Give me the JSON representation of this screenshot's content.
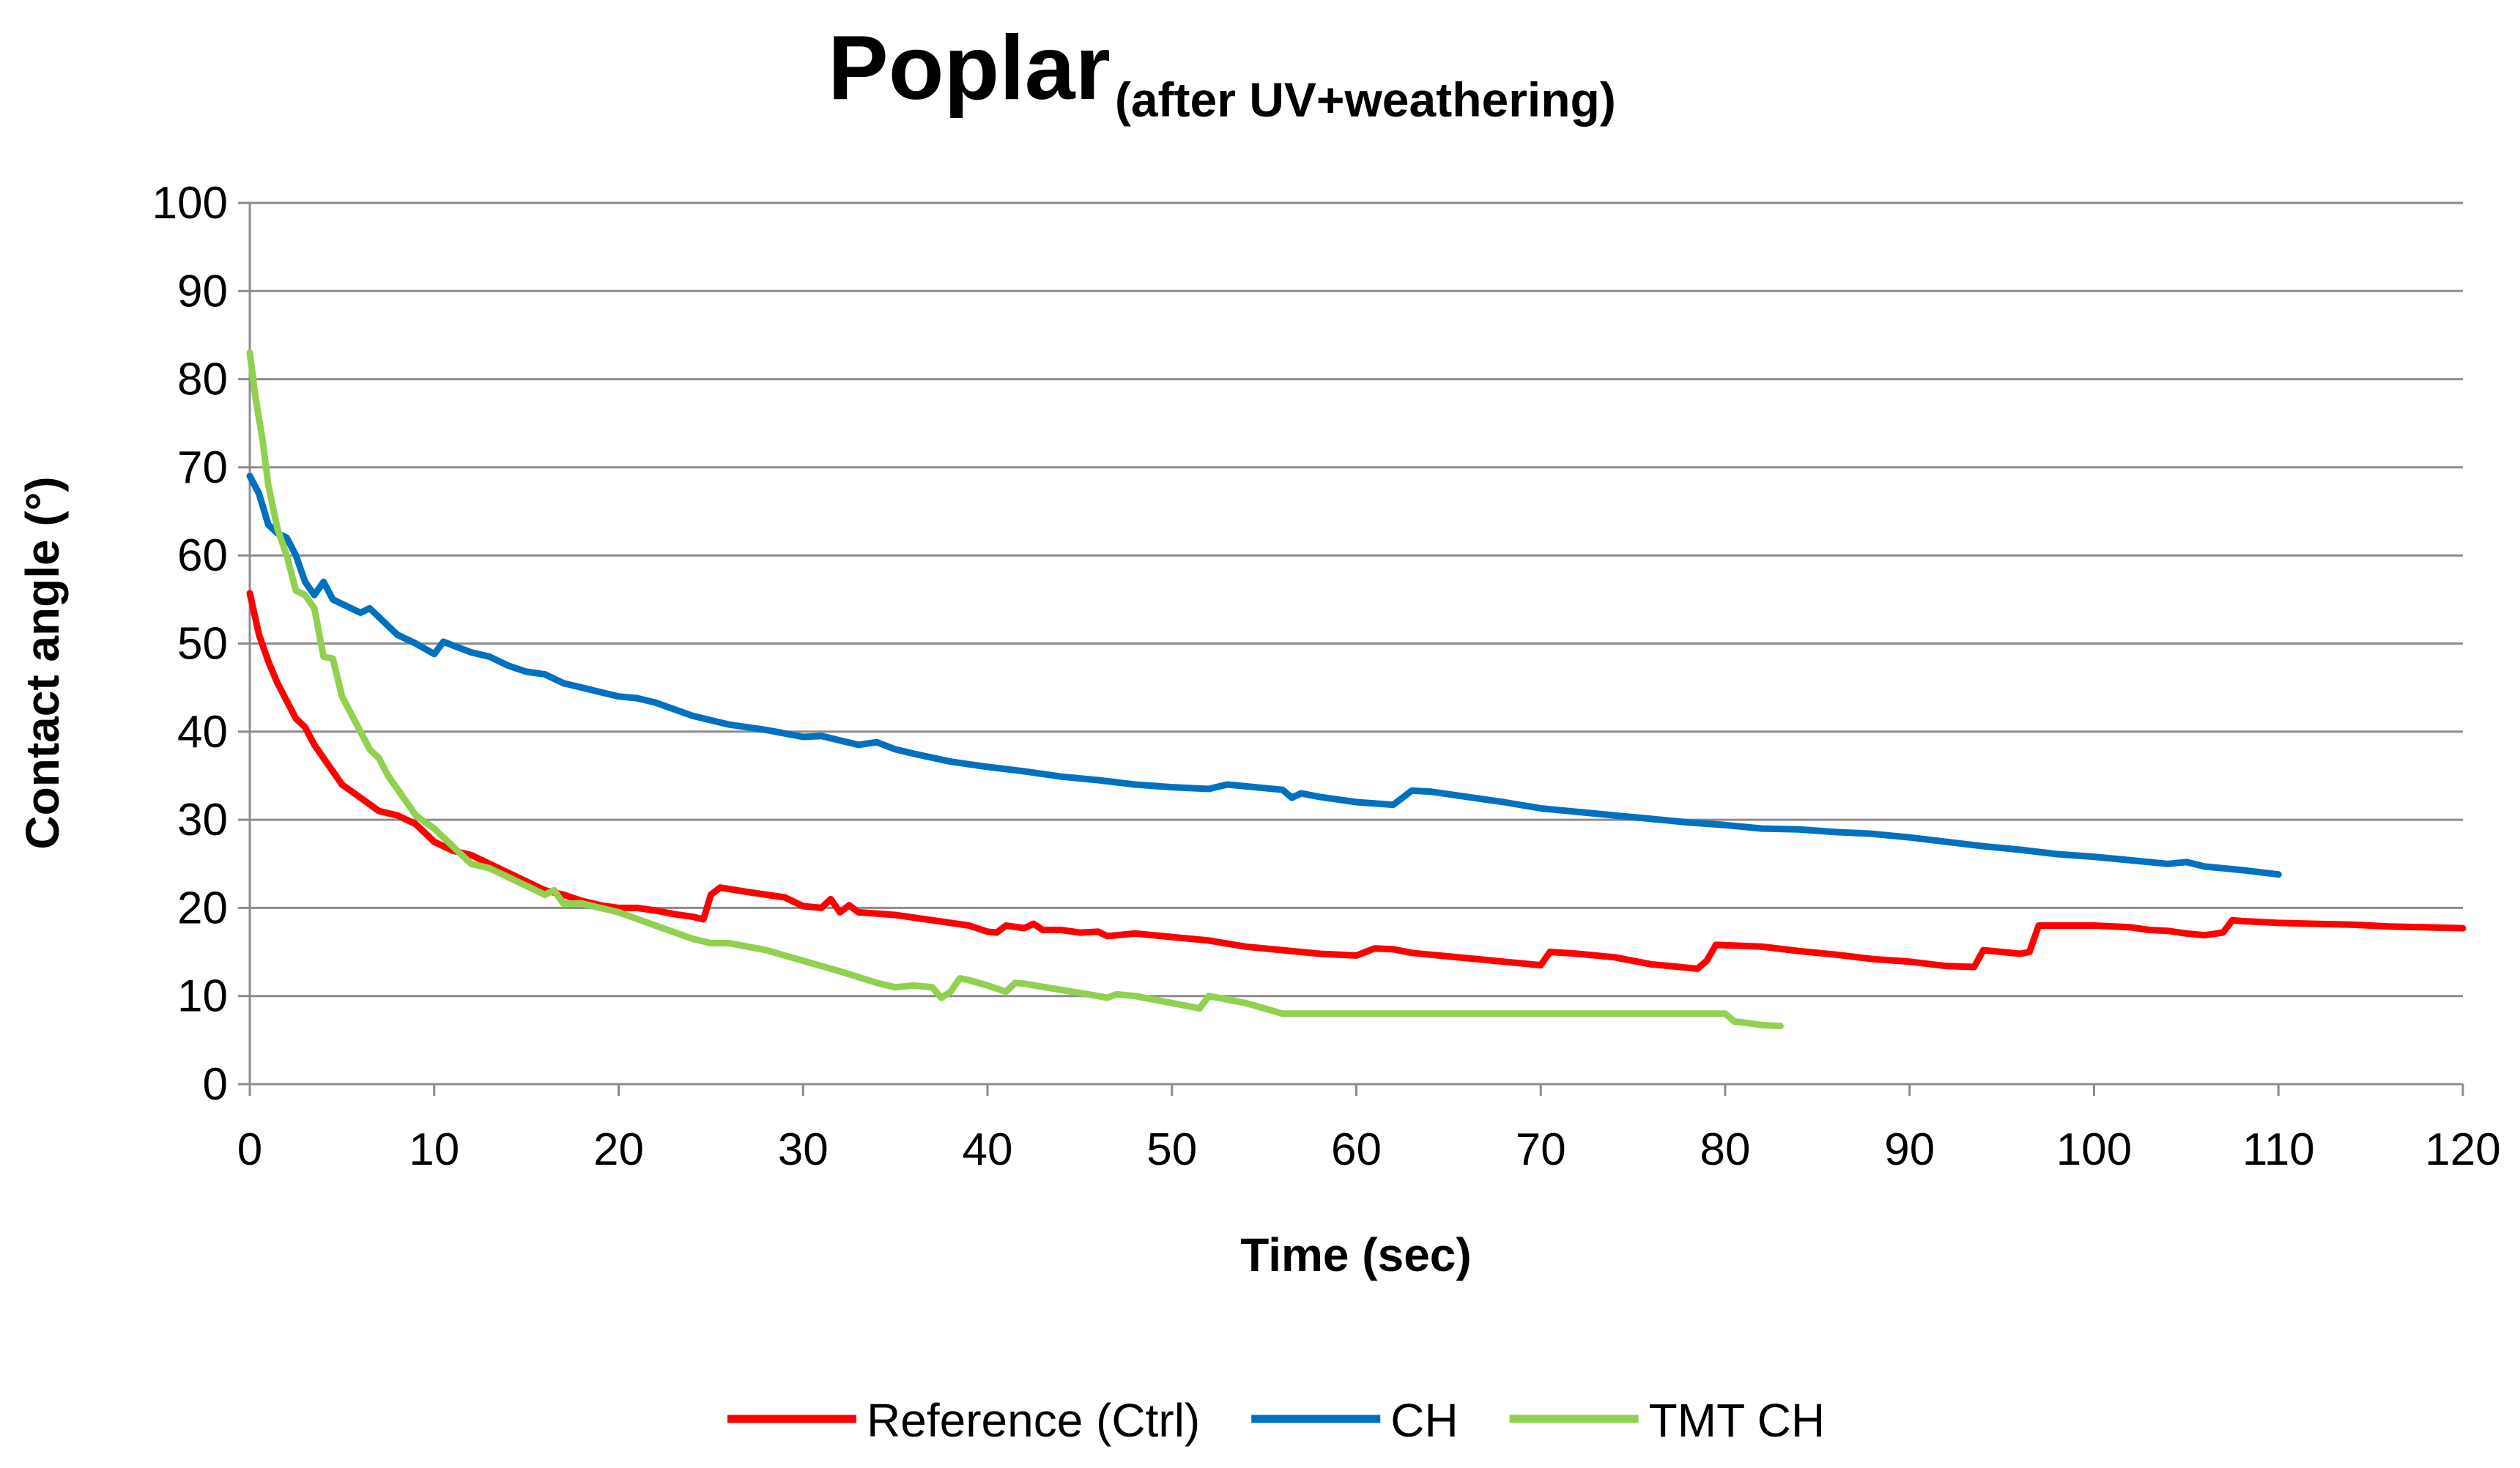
{
  "chart_data": {
    "type": "line",
    "title": "Poplar",
    "subtitle": "(after UV+weathering)",
    "xlabel": "Time (sec)",
    "ylabel": "Contact angle (°)",
    "xlim": [
      0,
      120
    ],
    "ylim": [
      0,
      100
    ],
    "xticks": [
      0,
      10,
      20,
      30,
      40,
      50,
      60,
      70,
      80,
      90,
      100,
      110,
      120
    ],
    "yticks": [
      0,
      10,
      20,
      30,
      40,
      50,
      60,
      70,
      80,
      90,
      100
    ],
    "grid": "horizontal",
    "legend_position": "bottom",
    "series": [
      {
        "name": "Reference (Ctrl)",
        "color": "#ff0000",
        "x": [
          0,
          0.5,
          1,
          1.5,
          2,
          2.5,
          3,
          3.5,
          4,
          4.5,
          5,
          6,
          7,
          8,
          9,
          10,
          11,
          12,
          13,
          14,
          15,
          16,
          17,
          18,
          19,
          20,
          21,
          22,
          23,
          24,
          24.6,
          25,
          25.5,
          27,
          29,
          30,
          31,
          31.5,
          32,
          32.5,
          33,
          35,
          37,
          39,
          40,
          40.5,
          41,
          42,
          42.5,
          43,
          44,
          45,
          46,
          46.5,
          48,
          50,
          52,
          54,
          56,
          58,
          60,
          60.5,
          61,
          62,
          63,
          64,
          66,
          68,
          70,
          70.5,
          72,
          74,
          75,
          76,
          78,
          78.5,
          79,
          79.5,
          82,
          84,
          86,
          88,
          90,
          92,
          93.5,
          94,
          95,
          96,
          96.5,
          97,
          100,
          102,
          103,
          104,
          105,
          106,
          107,
          107.5,
          108,
          110,
          112,
          114,
          116,
          118,
          120
        ],
        "values": [
          55.7,
          51,
          48,
          45.5,
          43.5,
          41.5,
          40.5,
          38.5,
          37,
          35.5,
          34,
          32.5,
          31,
          30.5,
          29.5,
          27.5,
          26.5,
          26,
          25,
          24,
          23,
          22,
          21.5,
          20.8,
          20.3,
          20,
          20,
          19.7,
          19.3,
          19,
          18.7,
          21.5,
          22.3,
          21.8,
          21.2,
          20.2,
          20,
          21,
          19.5,
          20.3,
          19.5,
          19.2,
          18.6,
          18,
          17.3,
          17.2,
          18,
          17.7,
          18.2,
          17.5,
          17.5,
          17.2,
          17.3,
          16.8,
          17.1,
          16.7,
          16.3,
          15.6,
          15.2,
          14.8,
          14.6,
          15,
          15.4,
          15.3,
          14.9,
          14.7,
          14.3,
          13.9,
          13.5,
          15,
          14.8,
          14.4,
          14,
          13.6,
          13.2,
          13.1,
          14,
          15.8,
          15.6,
          15.1,
          14.7,
          14.2,
          13.9,
          13.4,
          13.3,
          15.2,
          15,
          14.8,
          15,
          18,
          18,
          17.8,
          17.5,
          17.4,
          17.1,
          16.9,
          17.2,
          18.6,
          18.5,
          18.3,
          18.2,
          18.1,
          17.9,
          17.8,
          17.7
        ]
      },
      {
        "name": "CH",
        "color": "#0070c0",
        "x": [
          0,
          0.5,
          1,
          1.5,
          2,
          2.5,
          3,
          3.5,
          4,
          4.5,
          5,
          6,
          6.5,
          7,
          8,
          9,
          10,
          10.5,
          11,
          12,
          13,
          14,
          15,
          16,
          17,
          18,
          19,
          20,
          21,
          22,
          24,
          26,
          28,
          30,
          31,
          32,
          33,
          34,
          35,
          36,
          38,
          40,
          42,
          44,
          46,
          48,
          50,
          52,
          53,
          54,
          56,
          56.5,
          57,
          58,
          60,
          62,
          63,
          64,
          66,
          68,
          70,
          72,
          74,
          76,
          78,
          80,
          82,
          84,
          86,
          88,
          90,
          92,
          94,
          96,
          98,
          100,
          102,
          104,
          105,
          106,
          108,
          110
        ],
        "values": [
          69,
          67,
          63.5,
          62.5,
          62,
          60,
          57,
          55.5,
          57,
          55,
          54.5,
          53.5,
          54,
          53,
          51,
          50,
          48.8,
          50.2,
          49.8,
          49,
          48.5,
          47.5,
          46.8,
          46.5,
          45.5,
          45,
          44.5,
          44,
          43.8,
          43.3,
          41.8,
          40.8,
          40.2,
          39.4,
          39.5,
          39,
          38.5,
          38.8,
          38,
          37.5,
          36.6,
          36,
          35.5,
          34.9,
          34.5,
          34,
          33.7,
          33.5,
          34,
          33.8,
          33.4,
          32.5,
          33,
          32.6,
          32,
          31.7,
          33.3,
          33.2,
          32.6,
          32,
          31.3,
          30.9,
          30.5,
          30.1,
          29.7,
          29.4,
          29,
          28.9,
          28.6,
          28.4,
          28,
          27.5,
          27,
          26.6,
          26.1,
          25.8,
          25.4,
          25,
          25.2,
          24.7,
          24.3,
          23.8
        ]
      },
      {
        "name": "TMT CH",
        "color": "#92d050",
        "x": [
          0,
          0.3,
          0.7,
          1,
          1.5,
          2,
          2.5,
          3,
          3.5,
          4,
          4.5,
          5,
          5.5,
          6,
          6.5,
          7,
          7.5,
          8,
          8.5,
          9,
          10,
          11,
          12,
          13,
          14,
          15,
          16,
          16.5,
          17,
          18,
          19,
          20,
          22,
          24,
          25,
          26,
          28,
          30,
          32,
          34,
          35,
          36,
          37,
          37.5,
          38,
          38.5,
          39,
          40,
          41,
          41.5,
          42,
          44,
          46,
          46.5,
          47,
          48,
          50,
          51.5,
          52,
          54,
          55,
          56,
          58,
          60,
          62,
          64,
          66,
          68,
          70,
          72,
          74,
          76,
          78,
          80,
          80.5,
          81,
          82,
          83
        ],
        "values": [
          83,
          78,
          73,
          68,
          63,
          60,
          56,
          55.5,
          54,
          48.5,
          48.3,
          44,
          42,
          40,
          38,
          37,
          35,
          33.5,
          32,
          30.5,
          29,
          27,
          25,
          24.5,
          23.5,
          22.5,
          21.5,
          22,
          20.5,
          20.5,
          20,
          19.5,
          18,
          16.5,
          16,
          16,
          15.2,
          14,
          12.8,
          11.5,
          11,
          11.2,
          11,
          9.8,
          10.5,
          12,
          11.8,
          11.2,
          10.5,
          11.5,
          11.4,
          10.7,
          10,
          9.8,
          10.2,
          10,
          9.2,
          8.6,
          10,
          9.2,
          8.6,
          8,
          8,
          8,
          8,
          8,
          8,
          8,
          8,
          8,
          8,
          8,
          8,
          8,
          7.1,
          7,
          6.7,
          6.6
        ]
      }
    ]
  }
}
